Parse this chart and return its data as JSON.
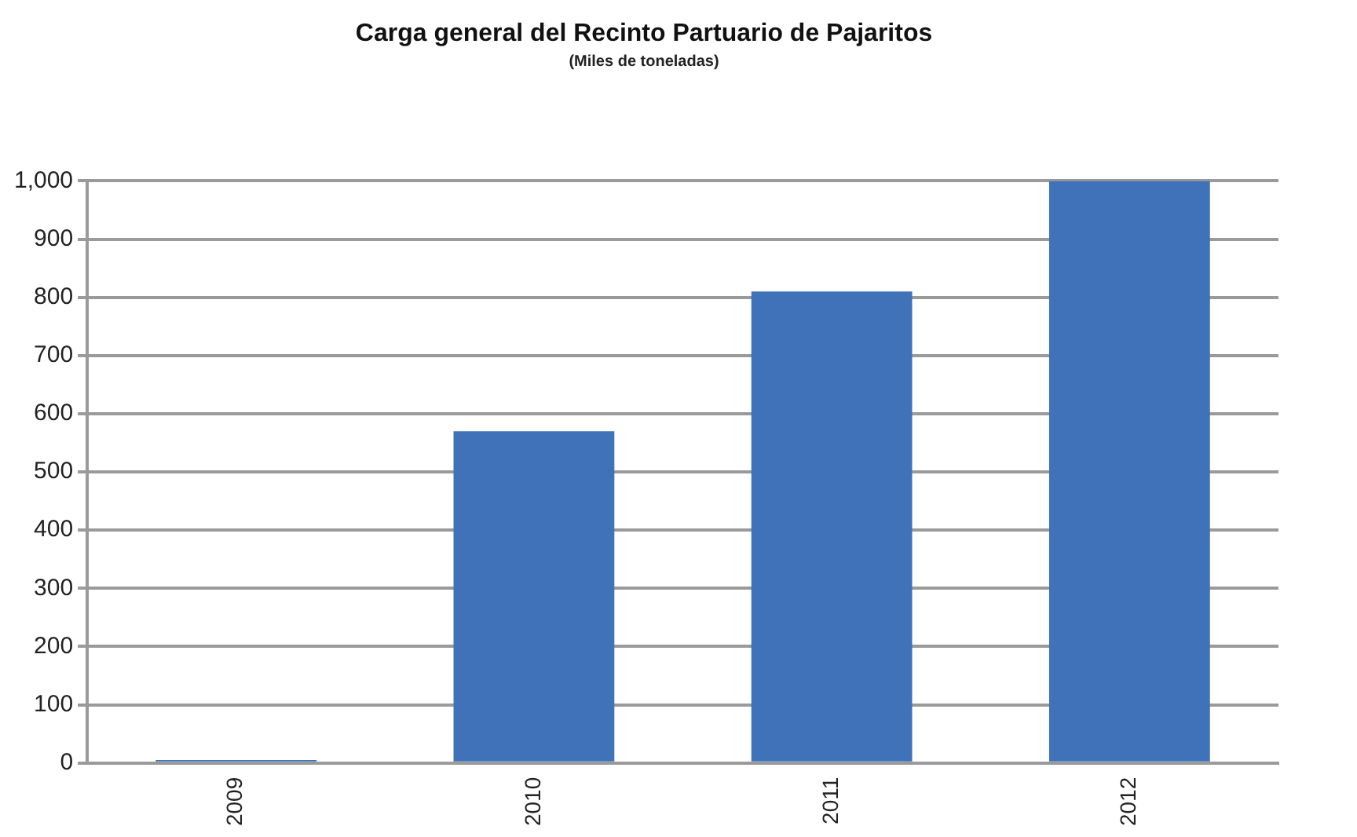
{
  "chart_data": {
    "type": "bar",
    "title": "Carga general del Recinto Partuario de Pajaritos",
    "subtitle": "(Miles de toneladas)",
    "categories": [
      "2009",
      "2010",
      "2011",
      "2012"
    ],
    "values": [
      5,
      570,
      810,
      1000
    ],
    "color": "#3f72b8",
    "ylim": [
      0,
      1000
    ],
    "yticks": [
      0,
      100,
      200,
      300,
      400,
      500,
      600,
      700,
      800,
      900,
      {
        "value": 1000,
        "label": "1,000"
      }
    ],
    "grid": "y",
    "legend": false
  }
}
